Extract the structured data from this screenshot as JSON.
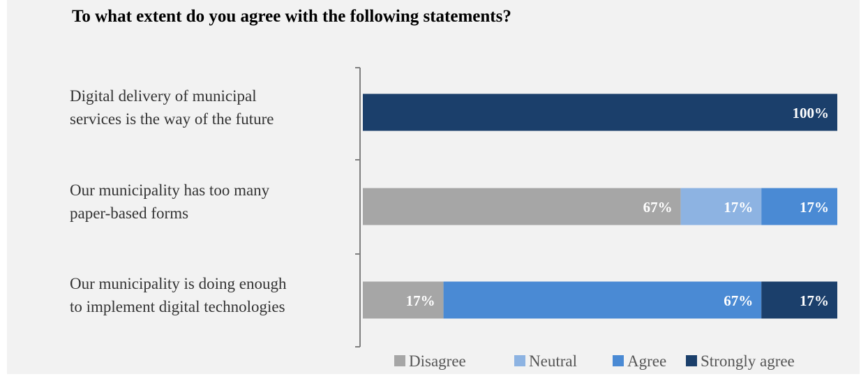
{
  "chart_data": {
    "type": "bar",
    "orientation": "horizontal",
    "stacked": true,
    "title": "To what extent do you agree with the following statements?",
    "categories": [
      [
        "Digital delivery of municipal",
        "services is the way of the future"
      ],
      [
        "Our municipality has too many",
        "paper-based forms"
      ],
      [
        "Our municipality is doing enough",
        "to implement digital technologies"
      ]
    ],
    "series": [
      {
        "name": "Disagree",
        "color": "#a6a6a6",
        "values": [
          0,
          67,
          17
        ],
        "labels": [
          "",
          "67%",
          "17%"
        ]
      },
      {
        "name": "Neutral",
        "color": "#8db3e2",
        "values": [
          0,
          17,
          0
        ],
        "labels": [
          "",
          "17%",
          ""
        ]
      },
      {
        "name": "Agree",
        "color": "#4a8ad4",
        "values": [
          0,
          17,
          67
        ],
        "labels": [
          "",
          "17%",
          "67%"
        ]
      },
      {
        "name": "Strongly agree",
        "color": "#1b3f6b",
        "values": [
          100,
          0,
          17
        ],
        "labels": [
          "100%",
          "",
          "17%"
        ]
      }
    ],
    "xlim": [
      0,
      100
    ],
    "grid": false,
    "legend_position": "bottom"
  }
}
